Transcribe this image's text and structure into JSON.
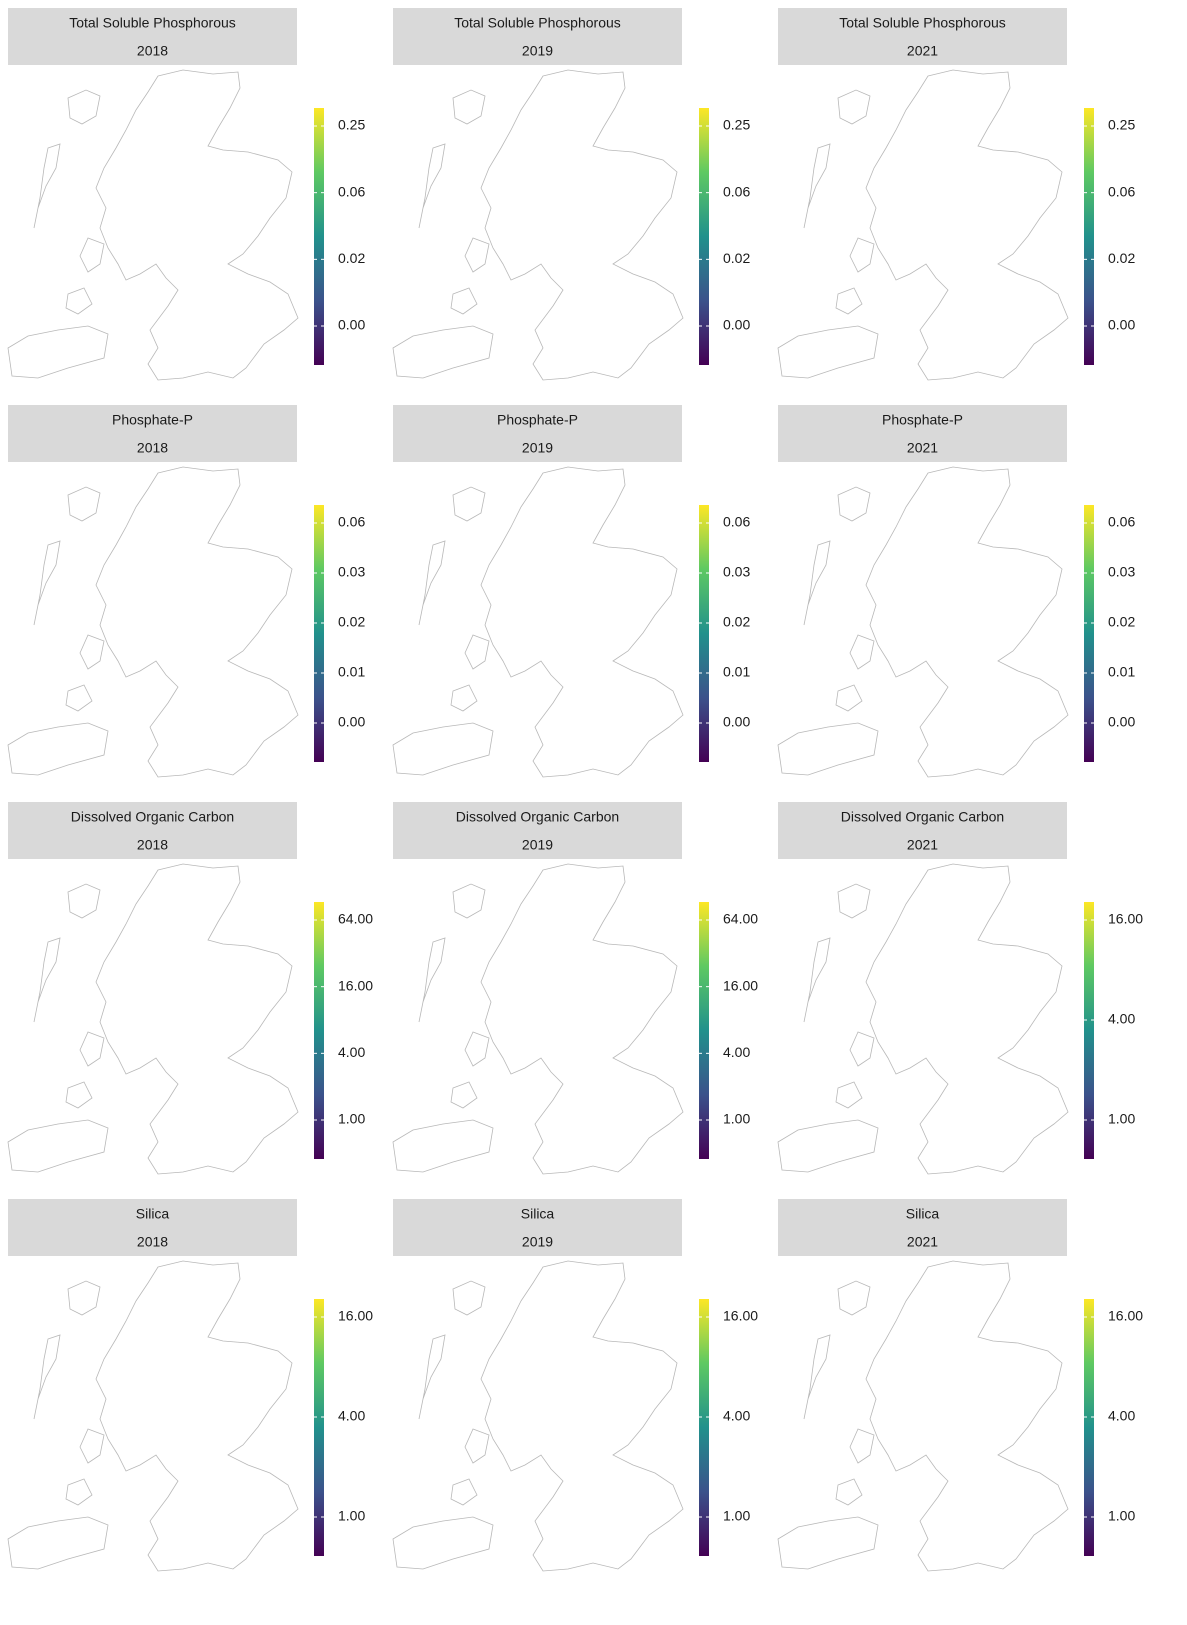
{
  "panels": [
    {
      "title": "Total Soluble Phosphorous",
      "year": "2018",
      "colorbar_ticks": [
        "0.25",
        "0.06",
        "0.02",
        "0.00"
      ]
    },
    {
      "title": "Total Soluble Phosphorous",
      "year": "2019",
      "colorbar_ticks": [
        "0.25",
        "0.06",
        "0.02",
        "0.00"
      ]
    },
    {
      "title": "Total Soluble Phosphorous",
      "year": "2021",
      "colorbar_ticks": [
        "0.25",
        "0.06",
        "0.02",
        "0.00"
      ]
    },
    {
      "title": "Phosphate-P",
      "year": "2018",
      "colorbar_ticks": [
        "0.06",
        "0.03",
        "0.02",
        "0.01",
        "0.00"
      ]
    },
    {
      "title": "Phosphate-P",
      "year": "2019",
      "colorbar_ticks": [
        "0.06",
        "0.03",
        "0.02",
        "0.01",
        "0.00"
      ]
    },
    {
      "title": "Phosphate-P",
      "year": "2021",
      "colorbar_ticks": [
        "0.06",
        "0.03",
        "0.02",
        "0.01",
        "0.00"
      ]
    },
    {
      "title": "Dissolved Organic Carbon",
      "year": "2018",
      "colorbar_ticks": [
        "64.00",
        "16.00",
        "4.00",
        "1.00"
      ]
    },
    {
      "title": "Dissolved Organic Carbon",
      "year": "2019",
      "colorbar_ticks": [
        "64.00",
        "16.00",
        "4.00",
        "1.00"
      ]
    },
    {
      "title": "Dissolved Organic Carbon",
      "year": "2021",
      "colorbar_ticks": [
        "16.00",
        "4.00",
        "1.00"
      ]
    },
    {
      "title": "Silica",
      "year": "2018",
      "colorbar_ticks": [
        "16.00",
        "4.00",
        "1.00"
      ]
    },
    {
      "title": "Silica",
      "year": "2019",
      "colorbar_ticks": [
        "16.00",
        "4.00",
        "1.00"
      ]
    },
    {
      "title": "Silica",
      "year": "2021",
      "colorbar_ticks": [
        "16.00",
        "4.00",
        "1.00"
      ]
    }
  ]
}
